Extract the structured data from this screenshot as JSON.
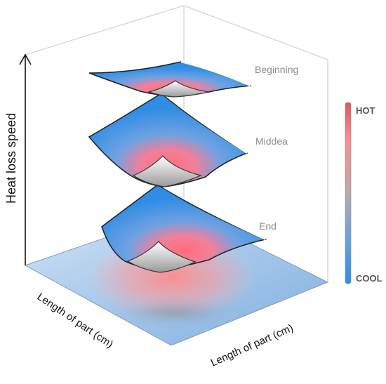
{
  "axes": {
    "y_label": "Heat loss speed",
    "x_label_left": "Length of part (cm)",
    "x_label_right": "Length of part (cm)"
  },
  "surfaces": [
    {
      "label": "Beginning"
    },
    {
      "label": "Middea"
    },
    {
      "label": "End"
    }
  ],
  "legend": {
    "hot_label": "HOT",
    "cool_label": "COOL",
    "hot_color": "#ff7f7f",
    "mid_color": "#a9a9a9",
    "cool_color": "#2f8de4"
  },
  "colors": {
    "surface_blue": "#2f8de4",
    "surface_hot": "#ff7a7a",
    "base_plane": "#9ec1e6"
  }
}
